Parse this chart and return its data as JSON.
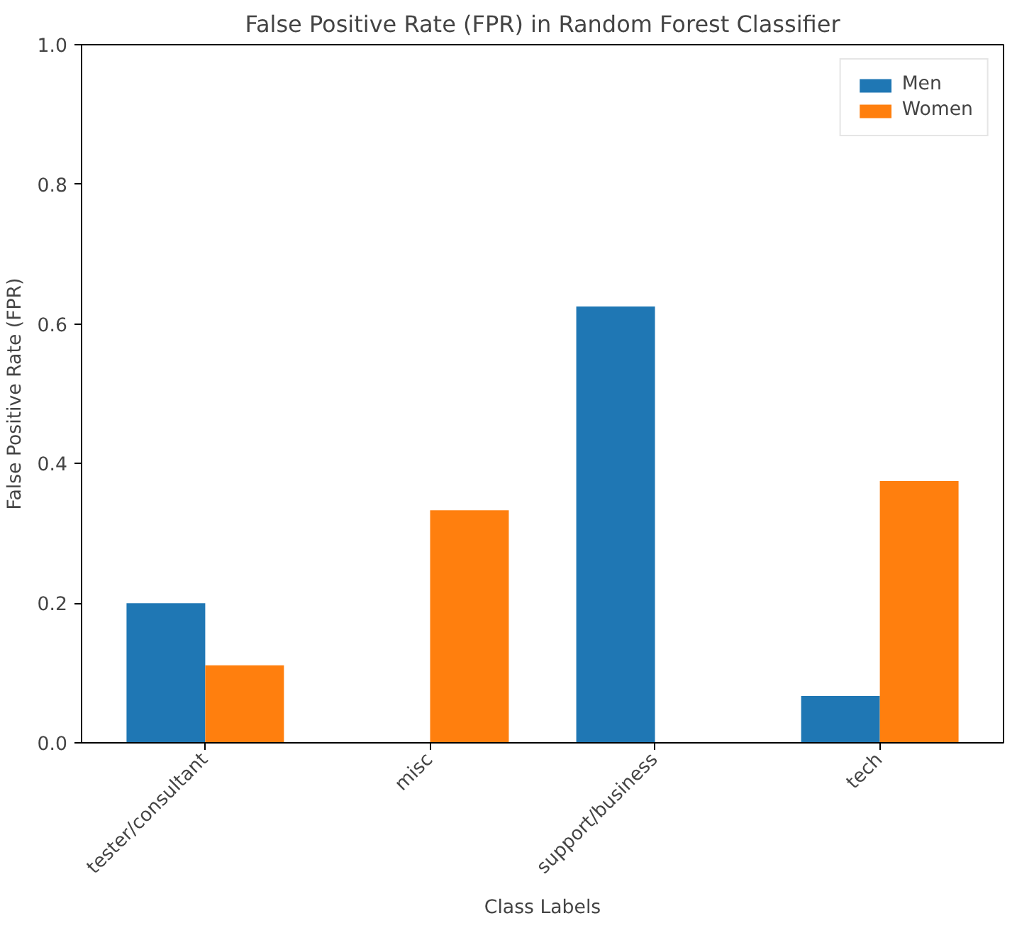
{
  "chart_data": {
    "type": "bar",
    "title": "False Positive Rate (FPR) in Random Forest Classifier",
    "xlabel": "Class Labels",
    "ylabel": "False Positive Rate (FPR)",
    "categories": [
      "tester/consultant",
      "misc",
      "support/business",
      "tech"
    ],
    "series": [
      {
        "name": "Men",
        "color": "#1f77b4",
        "values": [
          0.2,
          0,
          0.625,
          0.067
        ]
      },
      {
        "name": "Women",
        "color": "#ff7f0e",
        "values": [
          0.111,
          0.333,
          0,
          0.375
        ]
      }
    ],
    "ylim": [
      0,
      1
    ],
    "yticks": [
      {
        "value": 0,
        "label": "0.0"
      },
      0.2,
      0.4,
      0.6,
      0.8,
      {
        "value": 1,
        "label": "1.0"
      }
    ],
    "grid": false,
    "legend": "top right"
  }
}
